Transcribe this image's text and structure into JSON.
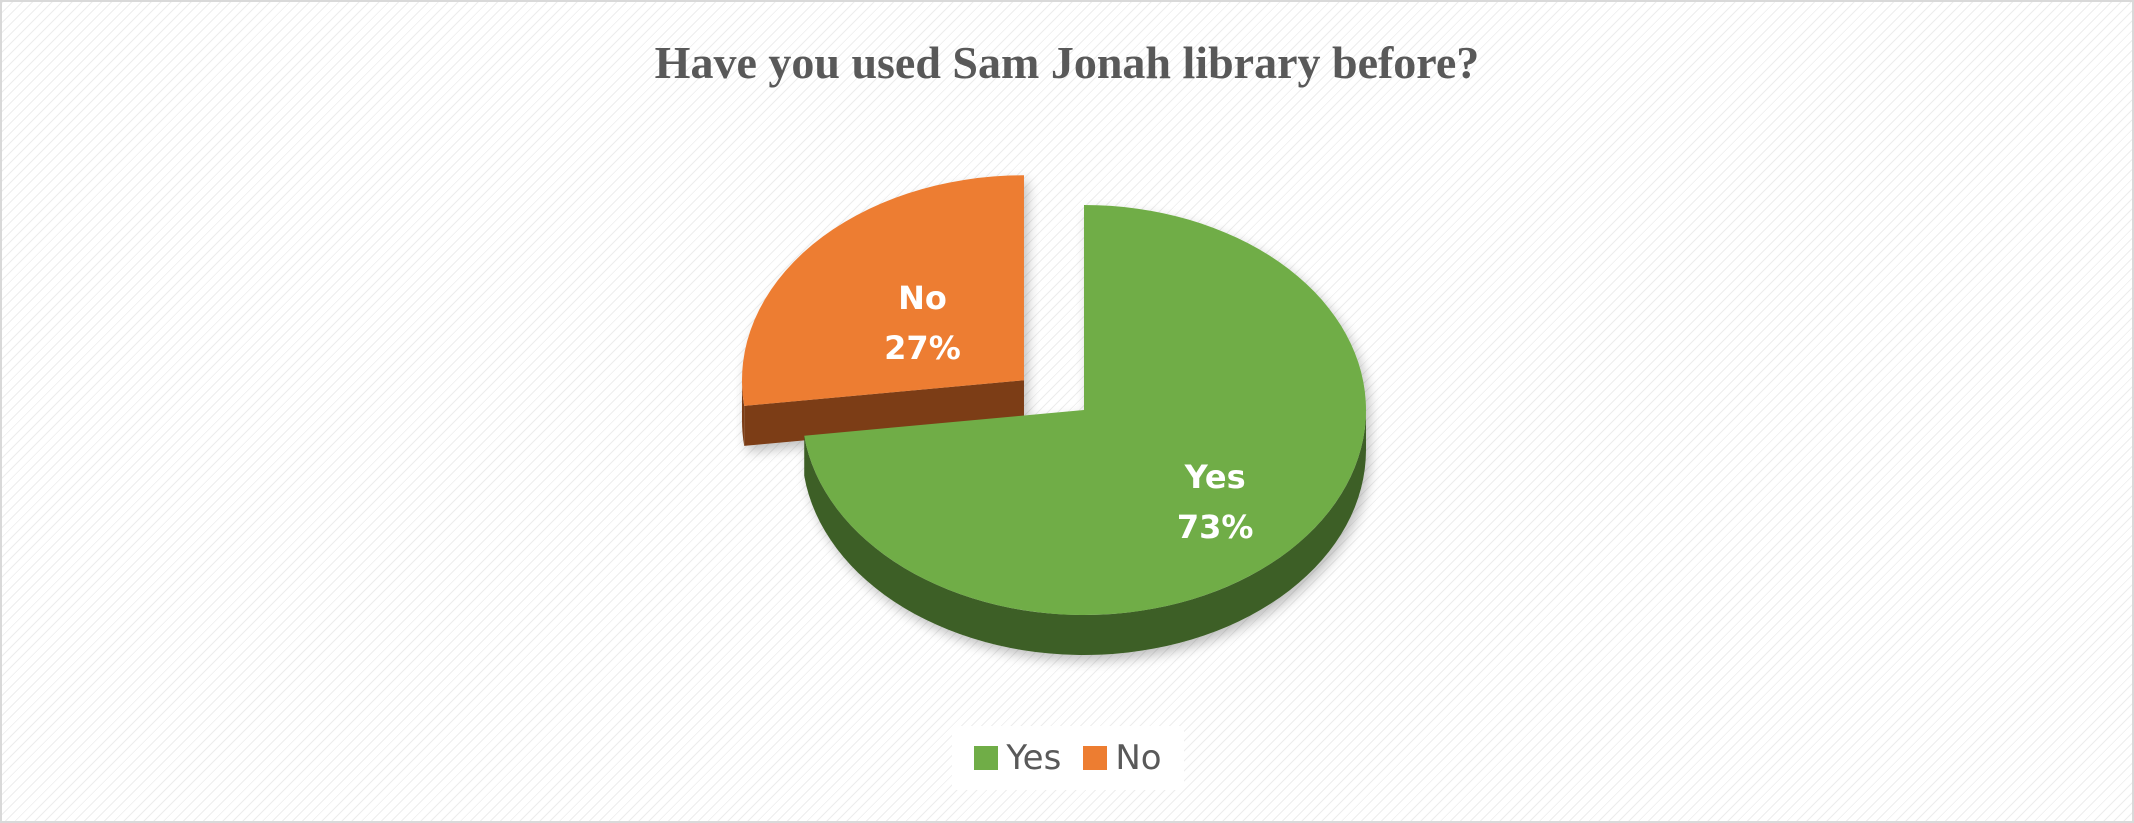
{
  "chart_data": {
    "type": "pie",
    "title": "Have you used Sam Jonah library before?",
    "categories": [
      "Yes",
      "No"
    ],
    "values": [
      73,
      27
    ],
    "labels": [
      "73%",
      "27%"
    ],
    "colors": [
      "#70ad47",
      "#ed7d31"
    ],
    "side_colors": [
      "#3d5f27",
      "#7c3d17"
    ],
    "exploded": "No",
    "legend": {
      "position": "bottom",
      "entries": [
        {
          "label": "Yes",
          "color": "#70ad47"
        },
        {
          "label": "No",
          "color": "#ed7d31"
        }
      ]
    }
  }
}
